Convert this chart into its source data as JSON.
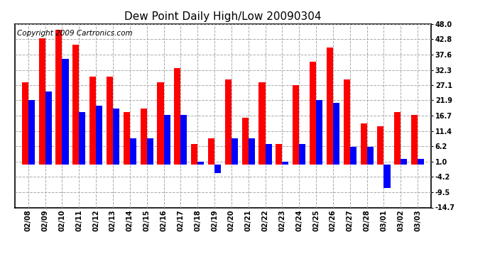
{
  "title": "Dew Point Daily High/Low 20090304",
  "copyright": "Copyright 2009 Cartronics.com",
  "dates": [
    "02/08",
    "02/09",
    "02/10",
    "02/11",
    "02/12",
    "02/13",
    "02/14",
    "02/15",
    "02/16",
    "02/17",
    "02/18",
    "02/19",
    "02/20",
    "02/21",
    "02/22",
    "02/23",
    "02/24",
    "02/25",
    "02/26",
    "02/27",
    "02/28",
    "03/01",
    "03/02",
    "03/03"
  ],
  "highs": [
    28,
    43,
    46,
    41,
    30,
    30,
    18,
    19,
    28,
    33,
    7,
    9,
    29,
    16,
    28,
    7,
    27,
    35,
    40,
    29,
    14,
    13,
    18,
    17
  ],
  "lows": [
    22,
    25,
    36,
    18,
    20,
    19,
    9,
    9,
    17,
    17,
    1,
    -3,
    9,
    9,
    7,
    1,
    7,
    22,
    21,
    6,
    6,
    -8,
    2,
    2
  ],
  "ylim": [
    -14.7,
    48.0
  ],
  "yticks": [
    -14.7,
    -9.5,
    -4.2,
    1.0,
    6.2,
    11.4,
    16.7,
    21.9,
    27.1,
    32.3,
    37.6,
    42.8,
    48.0
  ],
  "ytick_labels": [
    "-14.7",
    "-9.5",
    "-4.2",
    "1.0",
    "6.2",
    "11.4",
    "16.7",
    "21.9",
    "27.1",
    "32.3",
    "37.6",
    "42.8",
    "48.0"
  ],
  "grid_color": "#aaaaaa",
  "bar_high_color": "#ff0000",
  "bar_low_color": "#0000ff",
  "bg_color": "#ffffff",
  "plot_bg_color": "#ffffff",
  "title_fontsize": 11,
  "copyright_fontsize": 7.5
}
